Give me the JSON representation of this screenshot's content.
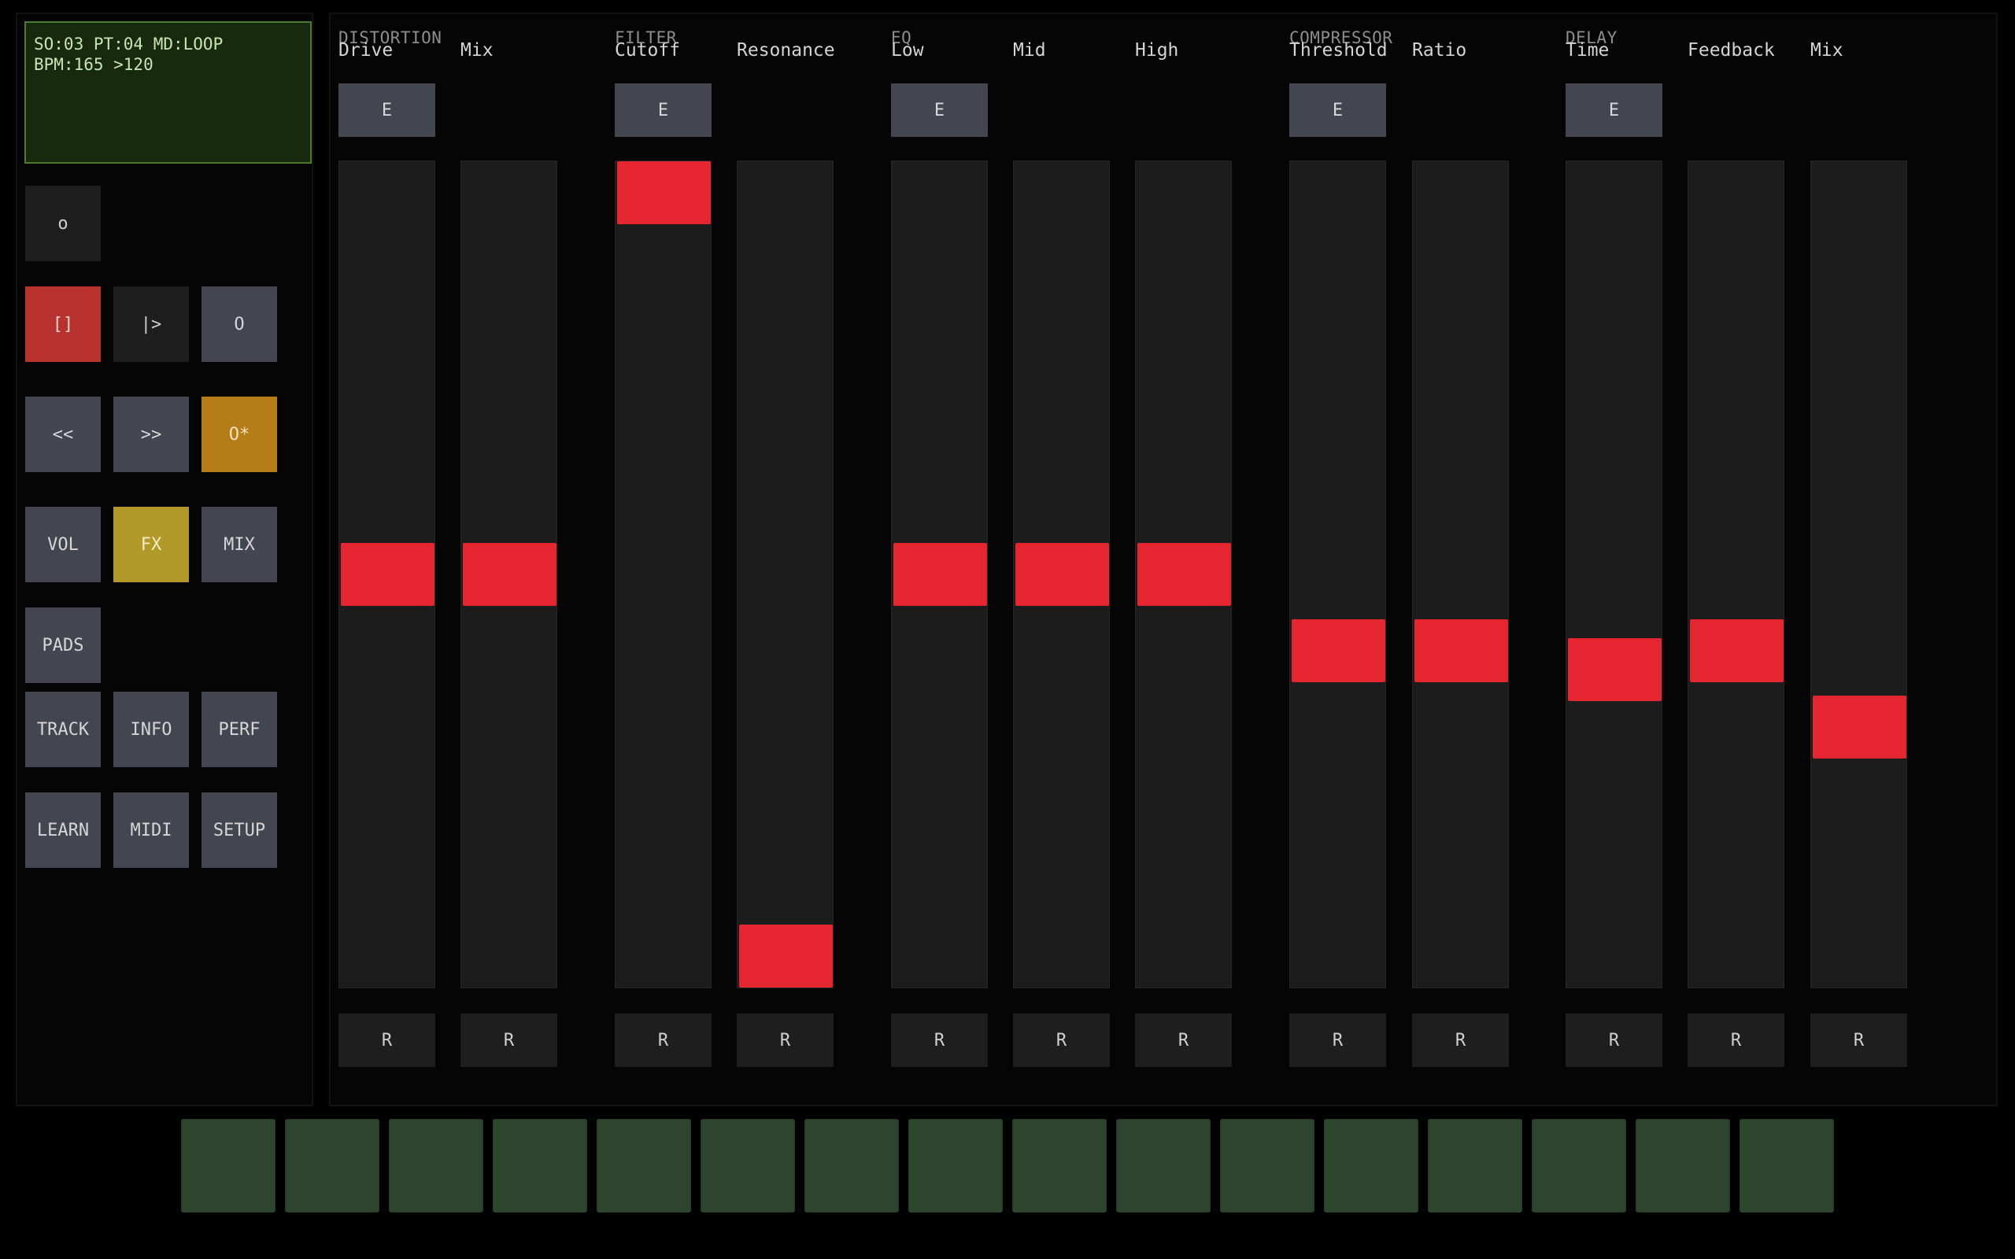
{
  "display": {
    "line1": "SO:03 PT:04 MD:LOOP",
    "line2": "BPM:165 >120"
  },
  "transport": {
    "small": "o",
    "stop": "[]",
    "play": "|>",
    "record": "O",
    "rewind": "<<",
    "forward": ">>",
    "overdub": "O*"
  },
  "modes": {
    "vol": "VOL",
    "fx": "FX",
    "mix": "MIX",
    "pads": "PADS",
    "track": "TRACK",
    "info": "INFO",
    "perf": "PERF",
    "learn": "LEARN",
    "midi": "MIDI",
    "setup": "SETUP"
  },
  "groups": [
    {
      "name": "DISTORTION",
      "enable_label": "E"
    },
    {
      "name": "FILTER",
      "enable_label": "E"
    },
    {
      "name": "EQ",
      "enable_label": "E"
    },
    {
      "name": "COMPRESSOR",
      "enable_label": "E"
    },
    {
      "name": "DELAY",
      "enable_label": "E"
    }
  ],
  "channels": [
    {
      "label": "Drive",
      "reset_label": "R",
      "level": 0.5
    },
    {
      "label": "Mix",
      "reset_label": "R",
      "level": 0.5
    },
    {
      "label": "Cutoff",
      "reset_label": "R",
      "level": 1.0
    },
    {
      "label": "Resonance",
      "reset_label": "R",
      "level": 0.0
    },
    {
      "label": "Low",
      "reset_label": "R",
      "level": 0.5
    },
    {
      "label": "Mid",
      "reset_label": "R",
      "level": 0.5
    },
    {
      "label": "High",
      "reset_label": "R",
      "level": 0.5
    },
    {
      "label": "Threshold",
      "reset_label": "R",
      "level": 0.4
    },
    {
      "label": "Ratio",
      "reset_label": "R",
      "level": 0.4
    },
    {
      "label": "Time",
      "reset_label": "R",
      "level": 0.375
    },
    {
      "label": "Feedback",
      "reset_label": "R",
      "level": 0.4
    },
    {
      "label": "Mix",
      "reset_label": "R",
      "level": 0.3
    }
  ],
  "pads": {
    "count": 16,
    "color": "#2d452c"
  },
  "colors": {
    "fader_thumb": "#e52530",
    "stop_active": "#b8322f",
    "overdub_active": "#b57d18",
    "fx_active": "#b19a2a",
    "lcd_bg": "#172a0d"
  }
}
